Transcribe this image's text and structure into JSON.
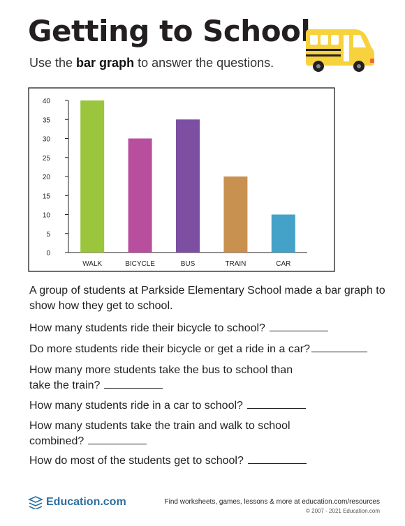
{
  "header": {
    "title": "Getting to School",
    "subtitle_pre": "Use the ",
    "subtitle_bold": "bar graph",
    "subtitle_post": " to answer the questions."
  },
  "chart_data": {
    "type": "bar",
    "categories": [
      "WALK",
      "BICYCLE",
      "BUS",
      "TRAIN",
      "CAR"
    ],
    "values": [
      40,
      30,
      35,
      20,
      10
    ],
    "colors": [
      "#9bc53d",
      "#b84f9e",
      "#7d4fa3",
      "#c99150",
      "#44a2c8"
    ],
    "yticks": [
      0,
      5,
      10,
      15,
      20,
      25,
      30,
      35,
      40
    ],
    "ylim": [
      0,
      40
    ],
    "title": "",
    "xlabel": "",
    "ylabel": ""
  },
  "intro": "A group of students at Parkside Elementary School made a bar graph to show how they get to school.",
  "questions": [
    "How many students ride their bicycle to school?",
    "Do more students ride their bicycle or get a ride in a car?",
    "How many more students take the bus to school than take the train?",
    "How many students ride in a car to school?",
    "How many students take the train and walk to school combined?",
    "How do most of the students get to school?"
  ],
  "footer": {
    "logo": "Education.com",
    "tagline": "Find worksheets, games, lessons & more at education.com/resources",
    "copyright": "© 2007 - 2021 Education.com"
  },
  "icons": {
    "bus": "school-bus-icon",
    "logo": "education-logo-icon"
  }
}
